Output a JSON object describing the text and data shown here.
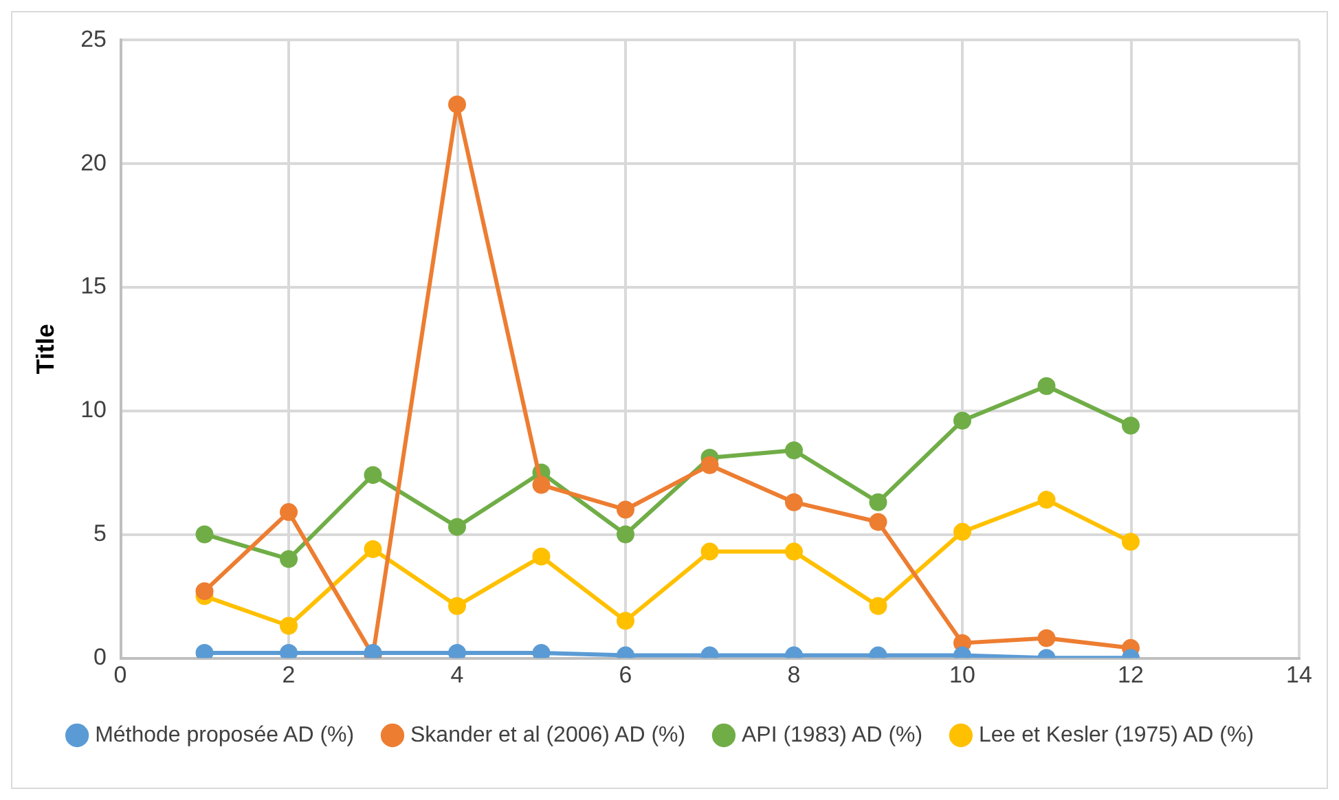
{
  "chart_data": {
    "type": "line",
    "ylabel": "Title",
    "x": [
      1,
      2,
      3,
      4,
      5,
      6,
      7,
      8,
      9,
      10,
      11,
      12
    ],
    "series": [
      {
        "name": "Méthode proposée AD (%)",
        "color": "#5b9bd5",
        "values": [
          0.2,
          0.2,
          0.2,
          0.2,
          0.2,
          0.1,
          0.1,
          0.1,
          0.1,
          0.1,
          0,
          0
        ]
      },
      {
        "name": "Skander et al (2006) AD (%)",
        "color": "#ed7d31",
        "values": [
          2.7,
          5.9,
          0.1,
          22.4,
          7.0,
          6.0,
          7.8,
          6.3,
          5.5,
          0.6,
          0.8,
          0.4
        ]
      },
      {
        "name": "API (1983) AD (%)",
        "color": "#70ad47",
        "values": [
          5.0,
          4.0,
          7.4,
          5.3,
          7.5,
          5.0,
          8.1,
          8.4,
          6.3,
          9.6,
          11.0,
          9.4
        ]
      },
      {
        "name": "Lee et Kesler (1975) AD (%)",
        "color": "#ffc000",
        "values": [
          2.5,
          1.3,
          4.4,
          2.1,
          4.1,
          1.5,
          4.3,
          4.3,
          2.1,
          5.1,
          6.4,
          4.7
        ]
      }
    ],
    "xlim": [
      0,
      14
    ],
    "xticks": [
      0,
      2,
      4,
      6,
      8,
      10,
      12,
      14
    ],
    "ylim": [
      0,
      25
    ],
    "yticks": [
      0,
      5,
      10,
      15,
      20,
      25
    ],
    "grid": true,
    "legend": "bottom",
    "marker": "circle",
    "line_style": "solid"
  }
}
